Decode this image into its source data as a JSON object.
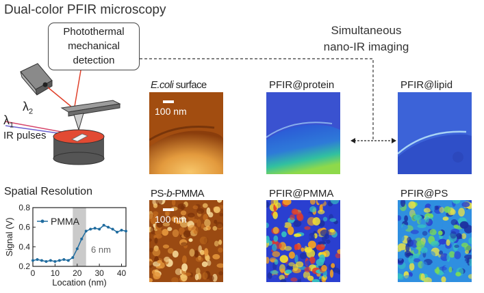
{
  "title": "Dual-color PFIR microscopy",
  "detection_box": {
    "line1": "Photothermal",
    "line2": "mechanical",
    "line3": "detection"
  },
  "simultaneous": {
    "line1": "Simultaneous",
    "line2": "nano-IR imaging"
  },
  "setup": {
    "lambda2": "λ",
    "lambda2_sub": "2",
    "lambda1": "λ",
    "lambda1_sub": "1",
    "ir_pulses": "IR pulses"
  },
  "panels": {
    "ecoli": {
      "pre": "E.coli",
      "post": " surface",
      "scale": "100 nm"
    },
    "protein": {
      "label": "PFIR@protein"
    },
    "lipid": {
      "label": "PFIR@lipid"
    },
    "psbpmma": {
      "pre": "PS-",
      "mid": "b",
      "post": "-PMMA",
      "scale": "100 nm"
    },
    "pmma": {
      "label": "PFIR@PMMA"
    },
    "ps": {
      "label": "PFIR@PS"
    }
  },
  "resolution": {
    "title": "Spatial Resolution",
    "resolution_note": "6 nm"
  },
  "chart_data": {
    "type": "line",
    "title": "",
    "xlabel": "Location (nm)",
    "ylabel": "Signal (V)",
    "xlim": [
      0,
      42
    ],
    "ylim": [
      0.2,
      0.8
    ],
    "x_ticks": [
      0,
      10,
      20,
      30,
      40
    ],
    "y_ticks": [
      0.2,
      0.4,
      0.6,
      0.8
    ],
    "shaded_region": [
      18,
      24
    ],
    "series": [
      {
        "name": "PMMA",
        "x": [
          0,
          2,
          4,
          6,
          8,
          10,
          12,
          14,
          16,
          18,
          20,
          22,
          24,
          26,
          28,
          30,
          32,
          34,
          36,
          38,
          40,
          42
        ],
        "y": [
          0.26,
          0.27,
          0.26,
          0.25,
          0.26,
          0.25,
          0.26,
          0.27,
          0.26,
          0.29,
          0.38,
          0.48,
          0.56,
          0.58,
          0.59,
          0.58,
          0.62,
          0.6,
          0.58,
          0.55,
          0.57,
          0.56
        ]
      }
    ]
  },
  "colors": {
    "line": "#1f6b9e",
    "shade": "#bdbdbd",
    "dash": "#333333"
  }
}
